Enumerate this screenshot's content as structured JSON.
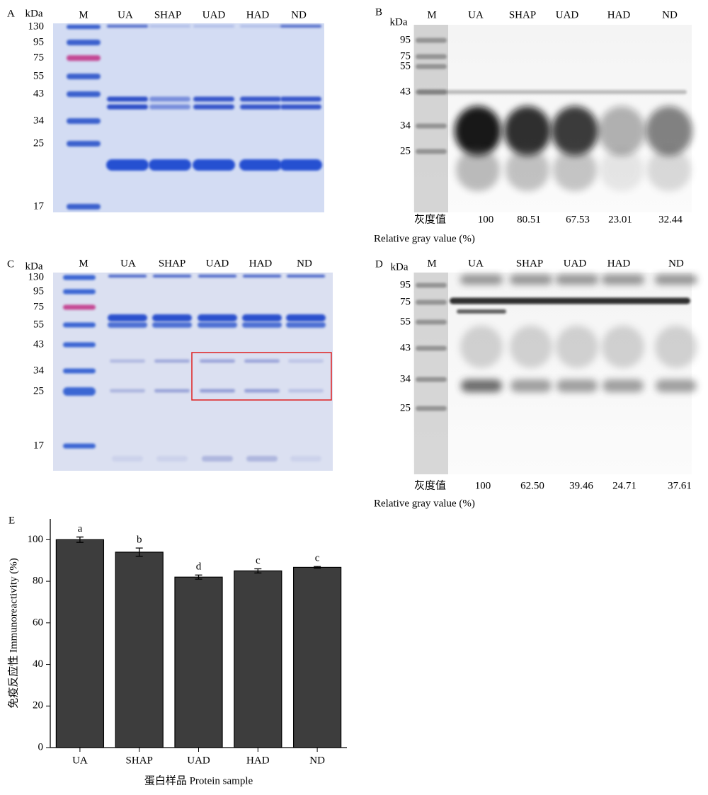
{
  "panels": [
    {
      "letter": "A",
      "unit": "kDa",
      "lanes": [
        "M",
        "UA",
        "SHAP",
        "UAD",
        "HAD",
        "ND"
      ],
      "markers": [
        130,
        95,
        75,
        55,
        43,
        34,
        25,
        17
      ]
    },
    {
      "letter": "B",
      "unit": "kDa",
      "lanes": [
        "M",
        "UA",
        "SHAP",
        "UAD",
        "HAD",
        "ND"
      ],
      "markers": [
        95,
        75,
        55,
        43,
        34,
        25
      ],
      "gray_label": "灰度值",
      "gray_values": [
        "100",
        "80.51",
        "67.53",
        "23.01",
        "32.44"
      ],
      "gray_caption": "Relative gray value (%)"
    },
    {
      "letter": "C",
      "unit": "kDa",
      "lanes": [
        "M",
        "UA",
        "SHAP",
        "UAD",
        "HAD",
        "ND"
      ],
      "markers": [
        130,
        95,
        75,
        55,
        43,
        34,
        25,
        17
      ]
    },
    {
      "letter": "D",
      "unit": "kDa",
      "lanes": [
        "M",
        "UA",
        "SHAP",
        "UAD",
        "HAD",
        "ND"
      ],
      "markers": [
        95,
        75,
        55,
        43,
        34,
        25
      ],
      "gray_label": "灰度值",
      "gray_values": [
        "100",
        "62.50",
        "39.46",
        "24.71",
        "37.61"
      ],
      "gray_caption": "Relative gray value (%)"
    }
  ],
  "chart_data": {
    "type": "bar",
    "label": "E",
    "categories": [
      "UA",
      "SHAP",
      "UAD",
      "HAD",
      "ND"
    ],
    "values": [
      100,
      94,
      82,
      85,
      86.7
    ],
    "errors": [
      1.3,
      2,
      1,
      1,
      0.4
    ],
    "annotations": [
      "a",
      "b",
      "d",
      "c",
      "c"
    ],
    "color": "#3d3d3d",
    "ylim": [
      0,
      110
    ],
    "yticks": [
      0,
      20,
      40,
      60,
      80,
      100
    ],
    "ylabel": "免疫反应性 Immunoreactivity (%)",
    "xlabel": "蛋白样品 Protein sample"
  }
}
